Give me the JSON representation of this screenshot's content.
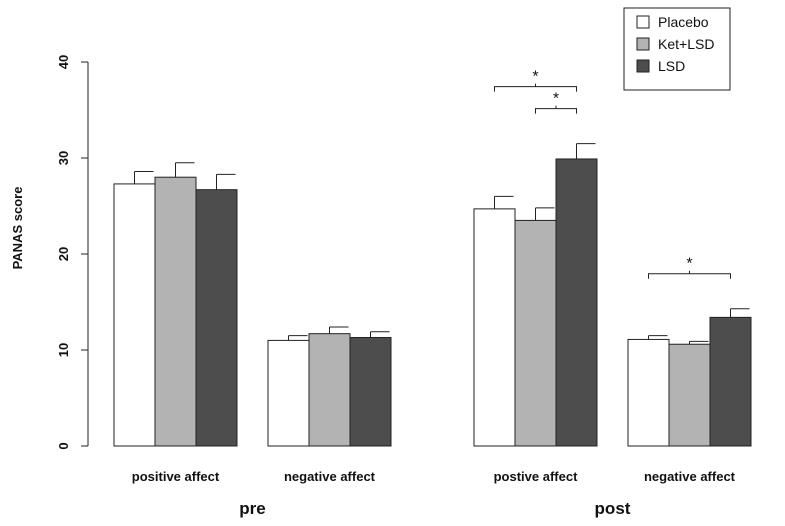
{
  "chart_data": {
    "type": "bar",
    "title": "",
    "xlabel": "",
    "ylabel": "PANAS score",
    "ylim": [
      0,
      40
    ],
    "yticks": [
      "0",
      "10",
      "20",
      "30",
      "40"
    ],
    "groups": [
      {
        "name": "pre",
        "categories": [
          "positive affect",
          "negative affect"
        ]
      },
      {
        "name": "post",
        "categories": [
          "postive affect",
          "negative affect"
        ]
      }
    ],
    "series": [
      {
        "name": "Placebo",
        "color": "#ffffff",
        "values": [
          27.3,
          11.0,
          24.7,
          11.1
        ],
        "errors": [
          1.3,
          0.5,
          1.3,
          0.4
        ]
      },
      {
        "name": "Ket+LSD",
        "color": "#b3b3b3",
        "values": [
          28.0,
          11.7,
          23.5,
          10.6
        ],
        "errors": [
          1.5,
          0.7,
          1.3,
          0.3
        ]
      },
      {
        "name": "LSD",
        "color": "#4d4d4d",
        "values": [
          26.7,
          11.3,
          29.9,
          13.4
        ],
        "errors": [
          1.6,
          0.6,
          1.6,
          0.9
        ]
      }
    ],
    "significance": [
      {
        "category_index": 2,
        "from_series": 0,
        "to_series": 2,
        "label": "*"
      },
      {
        "category_index": 2,
        "from_series": 1,
        "to_series": 2,
        "label": "*"
      },
      {
        "category_index": 3,
        "from_series": 0,
        "to_series": 2,
        "label": "*"
      }
    ],
    "legend": {
      "placement": "top-right",
      "entries": [
        "Placebo",
        "Ket+LSD",
        "LSD"
      ]
    }
  }
}
